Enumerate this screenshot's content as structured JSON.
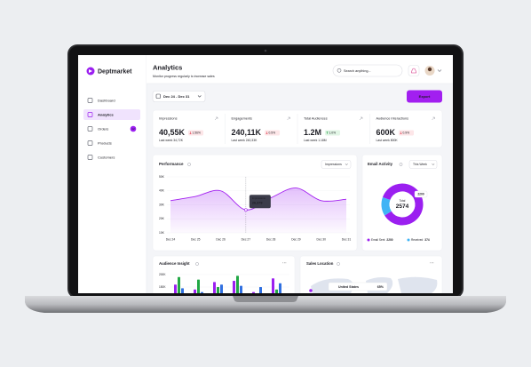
{
  "sidebar": {
    "brand": "Deptmarket",
    "nav": [
      {
        "label": "Dashboard"
      },
      {
        "label": "Analytics"
      },
      {
        "label": "Orders",
        "badge": "12"
      },
      {
        "label": "Products"
      },
      {
        "label": "Customers"
      }
    ]
  },
  "header": {
    "title": "Analytics",
    "subtitle": "Monitor progress regularly to increase sales",
    "search": "Search anything..."
  },
  "toolbar": {
    "date_range": "Dec 24 - Dec 31",
    "export": "Export"
  },
  "stats": [
    {
      "label": "Impressions",
      "value": "40,55K",
      "trend": "down",
      "change": "1.56%",
      "last_week": "Last week 34,72K"
    },
    {
      "label": "Engagements",
      "value": "240,11K",
      "trend": "down",
      "change": "0.5%",
      "last_week": "Last week 240,33K"
    },
    {
      "label": "Total Audiences",
      "value": "1.2M",
      "trend": "up",
      "change": "1.0%",
      "last_week": "Last week 1.18M"
    },
    {
      "label": "Audience Interactions",
      "value": "600K",
      "trend": "down",
      "change": "0.9%",
      "last_week": "Last week 800K"
    }
  ],
  "performance": {
    "type": "line",
    "title": "Performance",
    "filter": "Impressions",
    "categories": [
      "Dec 24",
      "Dec 25",
      "Dec 26",
      "Dec 27",
      "Dec 28",
      "Dec 29",
      "Dec 30",
      "Dec 31"
    ],
    "values": [
      33,
      36,
      40,
      26.379,
      35,
      42,
      33,
      34
    ],
    "color": "#a21ff0",
    "ylim": [
      10,
      50
    ],
    "yticks": [
      {
        "value": 10,
        "label": "10K"
      },
      {
        "value": 20,
        "label": "20K"
      },
      {
        "value": 30,
        "label": "30K"
      },
      {
        "value": 40,
        "label": "40K"
      },
      {
        "value": 50,
        "label": "50K"
      }
    ],
    "tooltip": {
      "index": 3,
      "label": "Impressions",
      "value": "26,379"
    }
  },
  "email_activity": {
    "type": "donut",
    "title": "Email Activity",
    "filter": "This Week",
    "center_label": "Total",
    "total": 2574,
    "series": [
      {
        "name": "Email Sent",
        "value": 2200,
        "color": "#9b1ff0"
      },
      {
        "name": "Received",
        "value": 374,
        "color": "#3fb4f5"
      }
    ]
  },
  "audience_insight": {
    "type": "bar",
    "title": "Audience Insight",
    "ylim": [
      0,
      200
    ],
    "yticks": [
      {
        "value": 150,
        "label": "150K"
      },
      {
        "value": 200,
        "label": "200K"
      }
    ],
    "series": [
      {
        "color": "#9b1ff0",
        "values": [
          160,
          140,
          170,
          175,
          130,
          185
        ]
      },
      {
        "color": "#22a845",
        "values": [
          190,
          180,
          150,
          195,
          120,
          140
        ]
      },
      {
        "color": "#2f6fe0",
        "values": [
          145,
          130,
          160,
          155,
          150,
          165
        ]
      }
    ]
  },
  "sales_location": {
    "title": "Sales Location",
    "country": "United States",
    "share": "65%"
  }
}
